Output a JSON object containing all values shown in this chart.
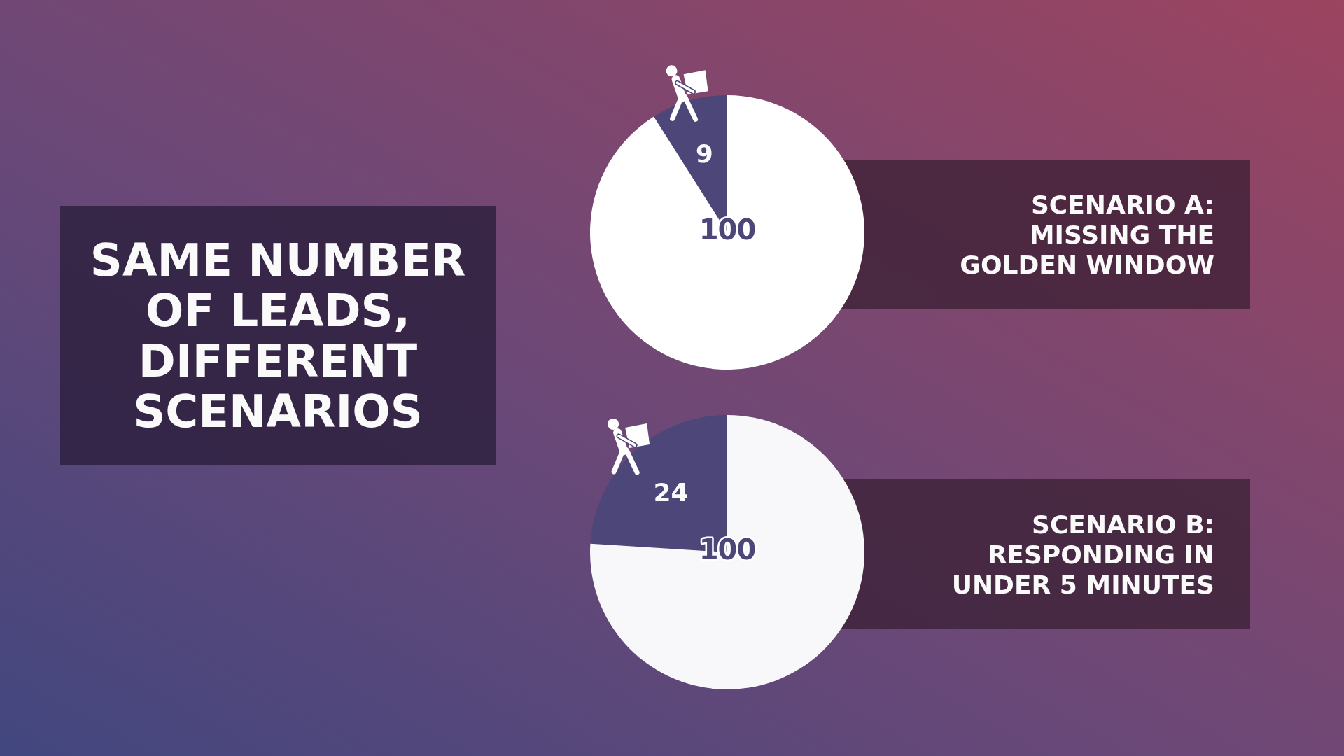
{
  "chart_data": [
    {
      "type": "other",
      "title": "SAME NUMBER OF LEADS, DIFFERENT SCENARIOS"
    },
    {
      "type": "pie",
      "title": "SCENARIO A: MISSING THE GOLDEN WINDOW",
      "categories": [
        null,
        null
      ],
      "values": [
        9,
        91
      ],
      "colors": [
        "#4d4679",
        "#ffffff"
      ],
      "value_labels": [
        "9",
        null
      ],
      "totals": [
        "100"
      ]
    },
    {
      "type": "pie",
      "title": "SCENARIO B: RESPONDING IN UNDER 5 MINUTES",
      "categories": [
        null,
        null
      ],
      "values": [
        24,
        76
      ],
      "colors": [
        "#4d4679",
        "#f8f8fa"
      ],
      "value_labels": [
        "24",
        null
      ],
      "totals": [
        "100"
      ]
    }
  ]
}
